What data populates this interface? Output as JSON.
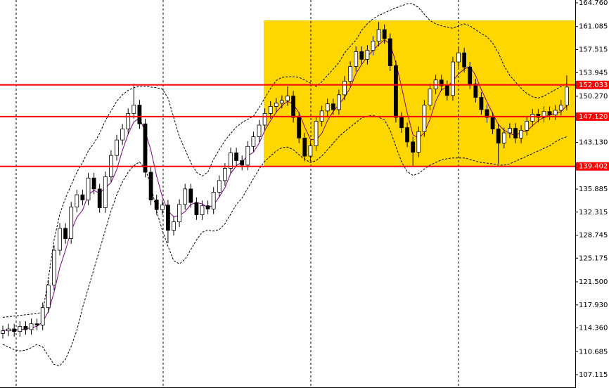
{
  "chart_data": {
    "type": "candlestick",
    "ylim": [
      105.155,
      165.196
    ],
    "yticks": [
      {
        "value": 164.76,
        "label": "164.760"
      },
      {
        "value": 161.085,
        "label": "161.085"
      },
      {
        "value": 157.515,
        "label": "157.515"
      },
      {
        "value": 153.945,
        "label": "153.945"
      },
      {
        "value": 150.27,
        "label": "150.270"
      },
      {
        "value": 143.13,
        "label": "143.130"
      },
      {
        "value": 135.885,
        "label": "135.885"
      },
      {
        "value": 132.315,
        "label": "132.315"
      },
      {
        "value": 128.745,
        "label": "128.745"
      },
      {
        "value": 125.175,
        "label": "125.175"
      },
      {
        "value": 121.5,
        "label": "121.500"
      },
      {
        "value": 117.93,
        "label": "117.930"
      },
      {
        "value": 114.36,
        "label": "114.360"
      },
      {
        "value": 110.685,
        "label": "110.685"
      },
      {
        "value": 107.115,
        "label": "107.115"
      }
    ],
    "levels": [
      {
        "value": 152.033,
        "label": "152.033"
      },
      {
        "value": 147.12,
        "label": "147.120"
      },
      {
        "value": 139.402,
        "label": "139.402"
      }
    ],
    "level_color": "#ff0000",
    "open": [
      113.5,
      113.9,
      114.2,
      113.8,
      114.6,
      114.1,
      115.0,
      114.8,
      117.5,
      121.0,
      126.4,
      129.8,
      128.2,
      133.1,
      135.0,
      134.2,
      137.6,
      135.9,
      133.0,
      137.8,
      141.1,
      143.5,
      145.2,
      147.6,
      148.9,
      146.0,
      138.5,
      134.2,
      132.7,
      133.4,
      129.5,
      130.8,
      133.5,
      135.9,
      133.8,
      131.9,
      133.3,
      132.8,
      135.4,
      137.2,
      139.1,
      141.5,
      140.3,
      139.6,
      142.5,
      144.0,
      145.8,
      147.6,
      148.7,
      149.2,
      149.6,
      150.3,
      147.0,
      143.8,
      141.0,
      142.6,
      146.4,
      148.0,
      149.1,
      148.2,
      150.5,
      152.6,
      154.9,
      157.2,
      156.0,
      157.4,
      158.8,
      160.6,
      159.2,
      155.0,
      147.0,
      145.4,
      143.2,
      141.6,
      144.8,
      148.9,
      151.4,
      152.8,
      151.9,
      150.4,
      155.6,
      157.0,
      154.8,
      152.2,
      150.1,
      148.2,
      147.0,
      145.2,
      143.0,
      144.6,
      145.3,
      143.8,
      145.0,
      146.4,
      147.5,
      147.0,
      147.9,
      147.4,
      148.1,
      148.9
    ],
    "high": [
      114.7,
      115.0,
      115.0,
      115.4,
      115.4,
      115.8,
      115.8,
      118.3,
      121.8,
      127.2,
      130.6,
      130.6,
      133.9,
      135.8,
      135.8,
      138.4,
      138.4,
      136.7,
      138.6,
      141.9,
      144.3,
      146.0,
      148.4,
      152.2,
      149.7,
      146.8,
      139.3,
      135.0,
      134.2,
      134.2,
      131.6,
      134.3,
      136.7,
      136.7,
      134.6,
      134.1,
      134.1,
      136.2,
      138.0,
      139.9,
      142.3,
      142.3,
      141.1,
      143.3,
      144.8,
      146.6,
      148.4,
      149.5,
      150.0,
      150.4,
      151.8,
      151.1,
      147.8,
      144.6,
      143.4,
      147.2,
      148.8,
      149.9,
      149.9,
      151.3,
      153.4,
      155.7,
      158.0,
      158.0,
      158.2,
      159.6,
      161.8,
      161.4,
      160.0,
      155.8,
      147.8,
      146.2,
      144.0,
      145.6,
      149.7,
      152.2,
      153.6,
      153.6,
      152.7,
      156.4,
      157.8,
      157.8,
      155.6,
      153.0,
      150.9,
      149.0,
      147.8,
      146.0,
      145.4,
      146.1,
      146.1,
      145.8,
      147.2,
      148.3,
      148.3,
      148.7,
      148.7,
      148.9,
      149.7,
      153.5
    ],
    "low": [
      112.7,
      113.1,
      113.0,
      113.0,
      113.3,
      113.3,
      114.0,
      114.0,
      116.7,
      120.2,
      125.6,
      127.4,
      127.4,
      132.3,
      133.4,
      133.4,
      135.1,
      132.2,
      132.2,
      137.0,
      140.3,
      142.7,
      144.4,
      146.8,
      145.2,
      137.7,
      133.4,
      131.9,
      131.9,
      127.5,
      128.7,
      130.0,
      132.7,
      133.0,
      131.1,
      131.1,
      132.0,
      132.0,
      134.6,
      136.4,
      138.3,
      139.5,
      138.8,
      138.8,
      141.7,
      143.2,
      145.0,
      146.8,
      147.9,
      148.4,
      148.8,
      146.2,
      143.0,
      140.2,
      140.2,
      141.8,
      145.6,
      147.2,
      147.4,
      147.4,
      149.7,
      151.8,
      154.1,
      155.2,
      155.2,
      156.6,
      158.0,
      158.4,
      154.2,
      146.2,
      144.6,
      142.4,
      139.5,
      140.8,
      144.0,
      148.1,
      150.6,
      151.1,
      149.6,
      149.6,
      154.8,
      154.0,
      151.4,
      149.3,
      147.4,
      146.2,
      144.4,
      139.8,
      142.2,
      143.8,
      143.0,
      143.0,
      144.2,
      145.6,
      146.2,
      146.2,
      146.6,
      146.6,
      147.3,
      148.1
    ],
    "close": [
      113.9,
      114.2,
      113.8,
      114.6,
      114.1,
      115.0,
      114.8,
      117.5,
      121.0,
      126.4,
      129.8,
      128.2,
      133.1,
      135.0,
      134.2,
      137.6,
      135.9,
      133.0,
      137.8,
      141.1,
      143.5,
      145.2,
      147.6,
      148.9,
      146.0,
      138.5,
      134.2,
      132.7,
      133.4,
      129.5,
      130.8,
      133.5,
      135.9,
      133.8,
      131.9,
      133.3,
      132.8,
      135.4,
      137.2,
      139.1,
      141.5,
      140.3,
      139.6,
      142.5,
      144.0,
      145.8,
      147.6,
      148.7,
      149.2,
      149.6,
      150.3,
      147.0,
      143.8,
      141.0,
      142.6,
      146.4,
      148.0,
      149.1,
      148.2,
      150.5,
      152.6,
      154.9,
      157.2,
      156.0,
      157.4,
      158.8,
      160.6,
      159.2,
      155.0,
      147.0,
      145.4,
      143.2,
      141.6,
      144.8,
      148.9,
      151.4,
      152.8,
      151.9,
      150.4,
      155.6,
      157.0,
      154.8,
      152.2,
      150.1,
      148.2,
      147.0,
      145.2,
      143.0,
      144.6,
      145.3,
      143.8,
      145.0,
      146.4,
      147.5,
      147.0,
      147.9,
      147.4,
      148.1,
      148.9,
      151.7
    ],
    "up_color": "#ffffff",
    "down_color": "#000000",
    "lines": [
      {
        "color": "#000000",
        "dashed": true,
        "values": [
          116.0,
          116.1,
          116.2,
          116.3,
          116.4,
          116.5,
          116.6,
          116.8,
          122,
          128,
          132,
          134.5,
          136.5,
          138.5,
          140,
          141.8,
          143,
          144.5,
          146.5,
          148,
          149.5,
          150.5,
          151.2,
          151.6,
          151.8,
          151.8,
          151.7,
          151.6,
          151.4,
          150,
          147,
          144,
          142,
          140,
          138.5,
          137.9,
          138.5,
          140.5,
          142,
          143.4,
          144.5,
          145.5,
          146.2,
          146.7,
          147.2,
          148.5,
          150,
          151.5,
          152.7,
          153.2,
          153.3,
          153.3,
          153.2,
          152.8,
          152.3,
          151.8,
          152.5,
          153.5,
          154.5,
          155.5,
          157,
          158,
          159,
          160.5,
          161.5,
          162.3,
          162.8,
          163.2,
          163.6,
          164,
          164.3,
          164.6,
          164.6,
          164,
          163,
          162,
          161.5,
          161.2,
          161,
          160.8,
          161.2,
          161.5,
          161.2,
          160.6,
          160,
          159.5,
          158.5,
          157,
          155,
          153.5,
          152.5,
          151.5,
          150.7,
          150.2,
          150,
          150.3,
          150.8,
          151.3,
          151.8,
          152.3
        ]
      },
      {
        "color": "#000000",
        "dashed": true,
        "values": [
          111.8,
          111.4,
          111,
          110.8,
          110.9,
          111.3,
          111.8,
          111.4,
          110,
          108.7,
          108.5,
          109.5,
          111.5,
          114,
          117.5,
          120.5,
          123.5,
          126.5,
          129.5,
          132.5,
          135,
          137,
          138.5,
          139.5,
          140.1,
          139,
          136.5,
          132.5,
          129.5,
          127,
          124.8,
          124.3,
          125,
          126.5,
          128,
          129.2,
          129.5,
          129.4,
          129.6,
          130.5,
          132,
          133.5,
          134.5,
          136,
          137.5,
          139,
          140.2,
          141,
          141.8,
          142.3,
          142.4,
          142,
          141.2,
          140.5,
          140,
          140.3,
          141,
          142,
          143,
          144,
          144.8,
          145.5,
          146.2,
          146.9,
          147.2,
          147.3,
          147,
          146.6,
          145,
          142.5,
          140.1,
          138.6,
          138,
          138.3,
          139,
          139.6,
          140,
          140.4,
          140.6,
          140.7,
          140.7,
          140.7,
          140.5,
          140.2,
          140,
          139.9,
          139.8,
          139.6,
          139.6,
          139.8,
          140.2,
          140.6,
          141,
          141.4,
          141.8,
          142.2,
          142.6,
          143.2,
          143.7,
          144
        ]
      },
      {
        "color": "#800080",
        "dashed": false,
        "values": [
          114.0,
          114.0,
          114.0,
          114.1,
          114.2,
          114.4,
          114.6,
          115.3,
          116.9,
          119.9,
          123.7,
          126.4,
          129.4,
          131.5,
          132.6,
          135.0,
          135.7,
          135.2,
          136.1,
          136.9,
          138.9,
          141.9,
          144.4,
          146.3,
          146.9,
          144.8,
          141.9,
          137.9,
          134.7,
          132.5,
          131.6,
          131.8,
          132.4,
          133.5,
          133.8,
          133.6,
          133.0,
          133.4,
          134.7,
          136.1,
          138.3,
          139.5,
          140.1,
          141.0,
          141.6,
          143.0,
          145.0,
          146.5,
          147.8,
          148.8,
          149.5,
          149.0,
          147.7,
          145.5,
          143.6,
          143.5,
          144.5,
          146.5,
          147.9,
          149.0,
          150.1,
          151.6,
          153.8,
          155.2,
          156.4,
          157.4,
          158.3,
          159.0,
          158.4,
          155.5,
          151.7,
          147.7,
          144.3,
          143.8,
          144.6,
          146.7,
          149.5,
          151.3,
          151.6,
          152.7,
          153.7,
          154.5,
          154.9,
          153.5,
          151.3,
          149.4,
          147.6,
          145.9,
          145.0,
          144.5,
          144.2,
          144.7,
          144.9,
          145.7,
          146.5,
          147.0,
          147.4,
          147.6,
          147.9,
          148.8
        ]
      }
    ]
  }
}
